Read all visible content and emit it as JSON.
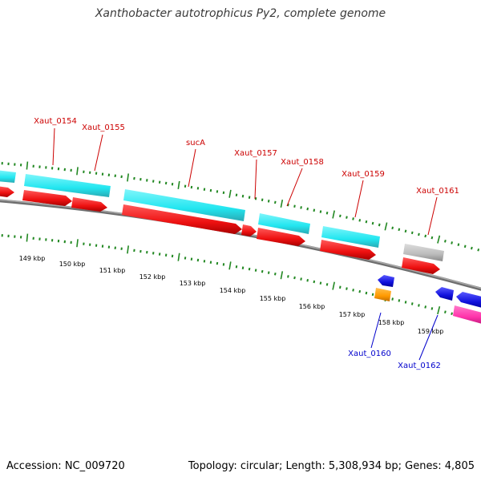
{
  "title": "Xanthobacter autotrophicus Py2, complete genome",
  "footer": {
    "accession": "Accession: NC_009720",
    "summary": "Topology: circular; Length: 5,308,934 bp; Genes: 4,805"
  },
  "colors": {
    "forward_label": "#cc0000",
    "reverse_label": "#0000cc",
    "backbone": "#888888",
    "tick": "#228822",
    "cyan": "#22e6f0",
    "red": "#ee1111",
    "grey": "#bbbbbb",
    "blue": "#1111dd",
    "orange": "#ff9900",
    "pink": "#ff33aa"
  },
  "gene_labels_forward": [
    "Xaut_0154",
    "Xaut_0155",
    "sucA",
    "Xaut_0157",
    "Xaut_0158",
    "Xaut_0159",
    "Xaut_0161"
  ],
  "gene_labels_reverse": [
    "Xaut_0160",
    "Xaut_0162"
  ],
  "kbp_labels": [
    "149 kbp",
    "150 kbp",
    "151 kbp",
    "152 kbp",
    "153 kbp",
    "154 kbp",
    "155 kbp",
    "156 kbp",
    "157 kbp",
    "158 kbp",
    "159 kbp"
  ]
}
